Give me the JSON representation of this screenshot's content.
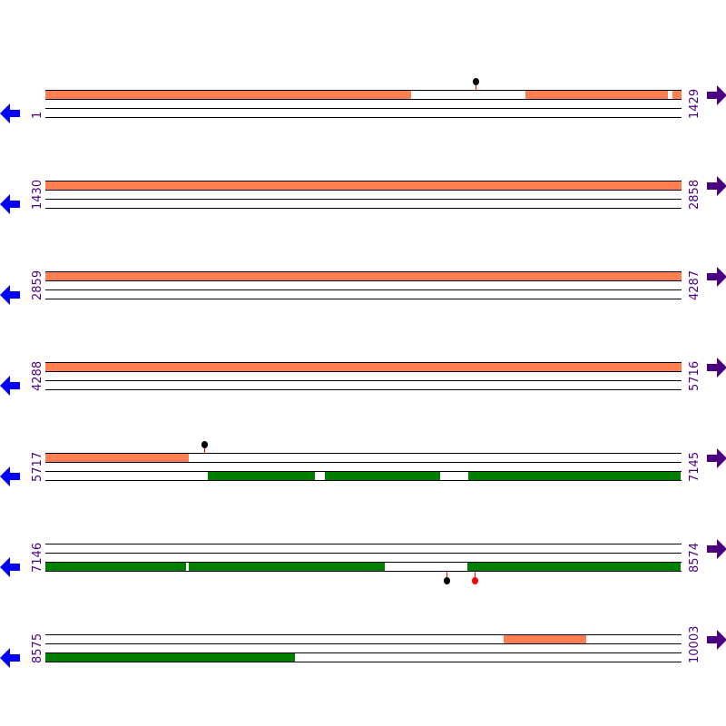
{
  "bp_per_row": 1429,
  "colors": {
    "forward_feature": "#ff7f50",
    "reverse_feature": "#008000",
    "left_arrow": "#0000ff",
    "right_arrow": "#4b0082",
    "label": "#4b0082",
    "pin_stem": "#ff0000"
  },
  "rows": [
    {
      "start": "1",
      "end": "1429",
      "s": 1,
      "top": [
        [
          1,
          822
        ],
        [
          1079,
          1399
        ],
        [
          1410,
          1429
        ]
      ],
      "bottom": [],
      "pins_top": [
        {
          "pos": 967,
          "color": "#000000"
        }
      ],
      "pins_bottom": []
    },
    {
      "start": "1430",
      "end": "2858",
      "s": 1430,
      "top": [
        [
          1430,
          2858
        ]
      ],
      "bottom": [],
      "pins_top": [],
      "pins_bottom": []
    },
    {
      "start": "2859",
      "end": "4287",
      "s": 2859,
      "top": [
        [
          2859,
          4287
        ]
      ],
      "bottom": [],
      "pins_top": [],
      "pins_bottom": []
    },
    {
      "start": "4288",
      "end": "5716",
      "s": 4288,
      "top": [
        [
          4288,
          5716
        ]
      ],
      "bottom": [],
      "pins_top": [],
      "pins_bottom": []
    },
    {
      "start": "5717",
      "end": "7145",
      "s": 5717,
      "top": [
        [
          5717,
          6039
        ]
      ],
      "bottom": [
        [
          6082,
          6322
        ],
        [
          6345,
          6604
        ],
        [
          6667,
          7145
        ]
      ],
      "pins_top": [
        {
          "pos": 6074,
          "color": "#000000"
        }
      ],
      "pins_bottom": []
    },
    {
      "start": "7146",
      "end": "8574",
      "s": 7146,
      "top": [],
      "bottom": [
        [
          7146,
          7462
        ],
        [
          7468,
          7908
        ],
        [
          8094,
          8574
        ]
      ],
      "pins_top": [],
      "pins_bottom": [
        {
          "pos": 8047,
          "color": "#000000"
        },
        {
          "pos": 8110,
          "color": "#ff0000"
        }
      ]
    },
    {
      "start": "8575",
      "end": "10003",
      "s": 8575,
      "top": [
        [
          9604,
          9790
        ]
      ],
      "bottom": [
        [
          8575,
          9136
        ]
      ],
      "pins_top": [],
      "pins_bottom": []
    }
  ]
}
